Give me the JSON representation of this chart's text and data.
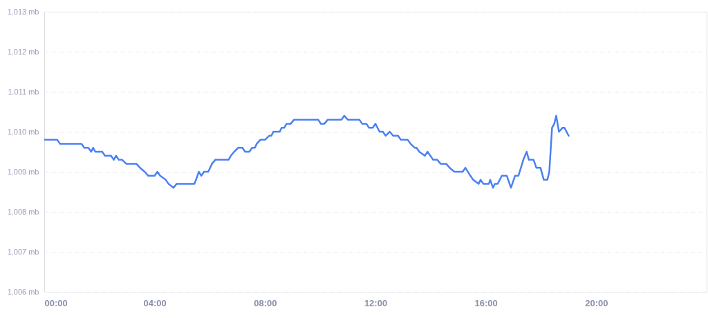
{
  "chart_data": {
    "type": "line",
    "x": [
      0.0,
      0.47,
      0.57,
      1.35,
      1.45,
      1.6,
      1.7,
      1.77,
      1.85,
      2.1,
      2.2,
      2.42,
      2.52,
      2.6,
      2.7,
      2.82,
      2.97,
      3.34,
      3.47,
      3.64,
      3.77,
      4.0,
      4.1,
      4.2,
      4.4,
      4.5,
      4.68,
      4.8,
      5.44,
      5.5,
      5.6,
      5.69,
      5.79,
      5.94,
      6.08,
      6.2,
      6.68,
      6.76,
      6.88,
      7.03,
      7.18,
      7.28,
      7.43,
      7.53,
      7.63,
      7.7,
      7.83,
      8.0,
      8.15,
      8.23,
      8.3,
      8.53,
      8.6,
      8.7,
      8.78,
      8.93,
      9.05,
      9.93,
      10.02,
      10.15,
      10.27,
      10.77,
      10.87,
      11.0,
      11.42,
      11.52,
      11.67,
      11.77,
      11.9,
      12.0,
      12.15,
      12.27,
      12.37,
      12.52,
      12.64,
      12.82,
      12.92,
      13.17,
      13.27,
      13.42,
      13.49,
      13.59,
      13.79,
      13.89,
      14.09,
      14.24,
      14.36,
      14.56,
      14.69,
      14.86,
      15.16,
      15.26,
      15.44,
      15.54,
      15.74,
      15.81,
      15.91,
      16.11,
      16.16,
      16.26,
      16.33,
      16.43,
      16.58,
      16.76,
      16.91,
      17.06,
      17.18,
      17.36,
      17.48,
      17.56,
      17.73,
      17.83,
      17.98,
      18.1,
      18.23,
      18.3,
      18.4,
      18.48,
      18.55,
      18.65,
      18.78,
      18.85,
      19.0
    ],
    "series": [
      {
        "color": "#4a80f5",
        "values": [
          1.0098,
          1.0098,
          1.0097,
          1.0097,
          1.0096,
          1.0096,
          1.0095,
          1.0096,
          1.0095,
          1.0095,
          1.0094,
          1.0094,
          1.0093,
          1.0094,
          1.0093,
          1.0093,
          1.0092,
          1.0092,
          1.0091,
          1.009,
          1.0089,
          1.0089,
          1.009,
          1.0089,
          1.0088,
          1.0087,
          1.0086,
          1.0087,
          1.0087,
          1.0088,
          1.009,
          1.0089,
          1.009,
          1.009,
          1.0092,
          1.0093,
          1.0093,
          1.0094,
          1.0095,
          1.0096,
          1.0096,
          1.0095,
          1.0095,
          1.0096,
          1.0096,
          1.0097,
          1.0098,
          1.0098,
          1.0099,
          1.0099,
          1.01,
          1.01,
          1.0101,
          1.0101,
          1.0102,
          1.0102,
          1.0103,
          1.0103,
          1.0102,
          1.0102,
          1.0103,
          1.0103,
          1.0104,
          1.0103,
          1.0103,
          1.0102,
          1.0102,
          1.0101,
          1.0101,
          1.0102,
          1.01,
          1.01,
          1.0099,
          1.01,
          1.0099,
          1.0099,
          1.0098,
          1.0098,
          1.0097,
          1.0096,
          1.0096,
          1.0095,
          1.0094,
          1.0095,
          1.0093,
          1.0093,
          1.0092,
          1.0092,
          1.0091,
          1.009,
          1.009,
          1.0091,
          1.0089,
          1.0088,
          1.0087,
          1.0088,
          1.0087,
          1.0087,
          1.0088,
          1.0086,
          1.0087,
          1.0087,
          1.0089,
          1.0089,
          1.0086,
          1.0089,
          1.0089,
          1.0093,
          1.0095,
          1.0093,
          1.0093,
          1.0091,
          1.0091,
          1.0088,
          1.0088,
          1.009,
          1.0101,
          1.0102,
          1.0104,
          1.01,
          1.0101,
          1.0101,
          1.0099
        ]
      }
    ],
    "xlim": [
      0,
      24
    ],
    "xticks": [
      {
        "value": 0,
        "label": "00:00"
      },
      {
        "value": 4,
        "label": "04:00"
      },
      {
        "value": 8,
        "label": "08:00"
      },
      {
        "value": 12,
        "label": "12:00"
      },
      {
        "value": 16,
        "label": "16:00"
      },
      {
        "value": 20,
        "label": "20:00"
      }
    ],
    "ylim": [
      1.006,
      1.013
    ],
    "yticks": [
      {
        "value": 1.006,
        "label": "1.006 mb"
      },
      {
        "value": 1.007,
        "label": "1.007 mb"
      },
      {
        "value": 1.008,
        "label": "1.008 mb"
      },
      {
        "value": 1.009,
        "label": "1.009 mb"
      },
      {
        "value": 1.01,
        "label": "1.010 mb"
      },
      {
        "value": 1.011,
        "label": "1.011 mb"
      },
      {
        "value": 1.012,
        "label": "1.012 mb"
      },
      {
        "value": 1.013,
        "label": "1.013 mb"
      }
    ],
    "grid": "y",
    "line_style": "solid"
  }
}
